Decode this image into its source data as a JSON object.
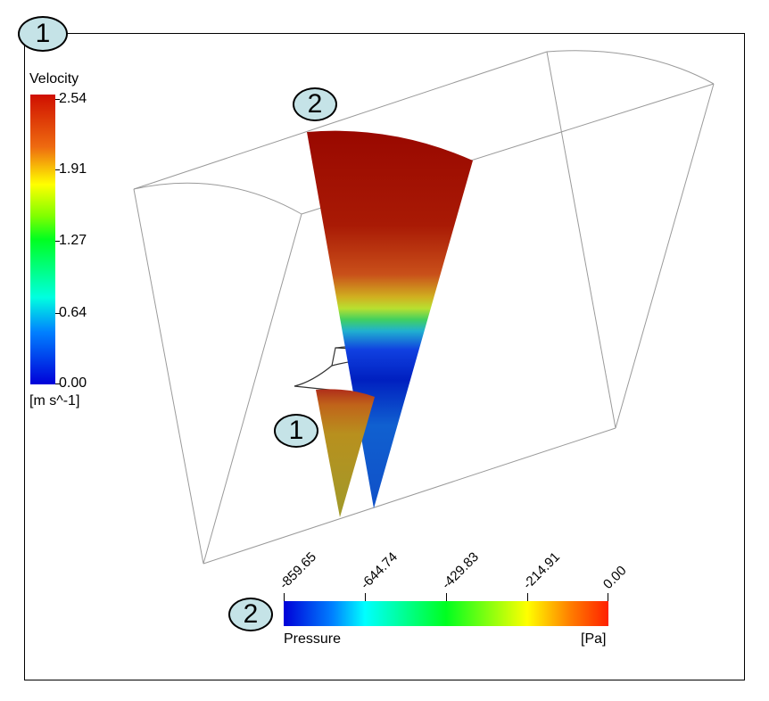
{
  "callouts": {
    "frame": "1",
    "slice_large": "2",
    "slice_small": "1",
    "pressure_legend": "2"
  },
  "velocity_legend": {
    "title": "Velocity",
    "unit": "[m s^-1]",
    "labels": [
      "2.54",
      "1.91",
      "1.27",
      "0.64",
      "0.00"
    ]
  },
  "pressure_legend": {
    "title": "Pressure",
    "unit": "[Pa]",
    "labels": [
      "-859.65",
      "-644.74",
      "-429.83",
      "-214.91",
      "0.00"
    ]
  },
  "colors": {
    "callout_fill": "#c5e3e7",
    "slice_high": "#b01a05",
    "slice_low": "#0040d0",
    "small_slice": "#b89020"
  }
}
